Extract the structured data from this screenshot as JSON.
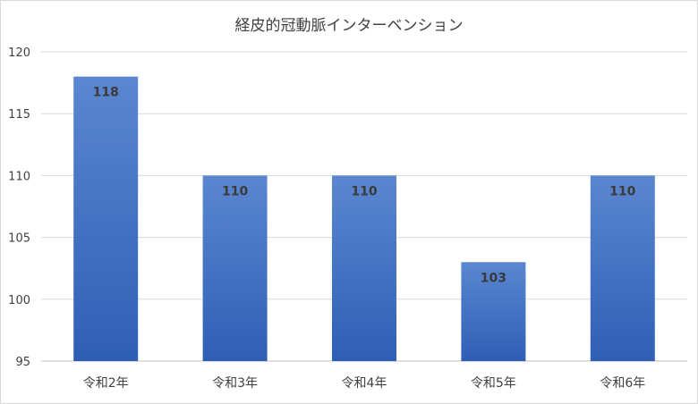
{
  "chart_data": {
    "type": "bar",
    "title": "経皮的冠動脈インターベンション",
    "categories": [
      "令和2年",
      "令和3年",
      "令和4年",
      "令和5年",
      "令和6年"
    ],
    "values": [
      118,
      110,
      110,
      103,
      110
    ],
    "ylim": [
      95,
      120
    ],
    "yticks": [
      95,
      100,
      105,
      110,
      115,
      120
    ],
    "grid": true,
    "legend": "none",
    "bar_color_top": "#5b87d0",
    "bar_color_bottom": "#2f5eb5"
  }
}
